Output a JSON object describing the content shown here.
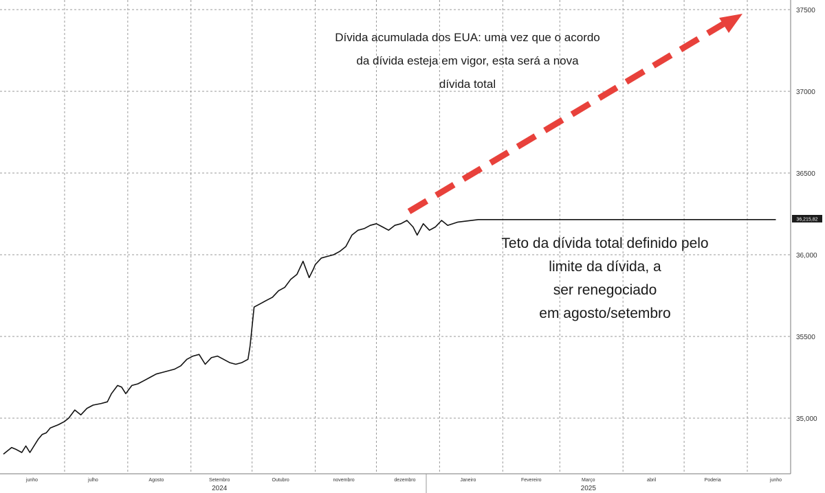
{
  "chart_data": {
    "type": "line",
    "title": "",
    "xlabel": "",
    "ylabel": "",
    "ylim": [
      34760,
      37560
    ],
    "y_ticks": [
      {
        "value": 35000,
        "label": "35,000"
      },
      {
        "value": 35500,
        "label": "35500"
      },
      {
        "value": 36000,
        "label": "36,000"
      },
      {
        "value": 36500,
        "label": "36500"
      },
      {
        "value": 37000,
        "label": "37000"
      },
      {
        "value": 37500,
        "label": "37500"
      }
    ],
    "x_ticks": [
      {
        "date": "2024-06-15",
        "label": "junho"
      },
      {
        "date": "2024-07-15",
        "label": "julho"
      },
      {
        "date": "2024-08-15",
        "label": "Agosto"
      },
      {
        "date": "2024-09-15",
        "label": "Setembro"
      },
      {
        "date": "2024-10-15",
        "label": "Outubro"
      },
      {
        "date": "2024-11-15",
        "label": "novembro"
      },
      {
        "date": "2024-12-15",
        "label": "dezembro"
      },
      {
        "date": "2025-01-15",
        "label": "Janeiro"
      },
      {
        "date": "2025-02-15",
        "label": "Fevereiro"
      },
      {
        "date": "2025-03-15",
        "label": "Março"
      },
      {
        "date": "2025-04-15",
        "label": "abril"
      },
      {
        "date": "2025-05-15",
        "label": "Poderia"
      },
      {
        "date": "2025-06-15",
        "label": "junho"
      }
    ],
    "years": [
      {
        "date": "2024-09-15",
        "label": "2024"
      },
      {
        "date": "2025-03-15",
        "label": "2025"
      }
    ],
    "grid": true,
    "series": [
      {
        "color": "#111111",
        "x": [
          "2024-06-01",
          "2024-06-05",
          "2024-06-07",
          "2024-06-10",
          "2024-06-12",
          "2024-06-14",
          "2024-06-18",
          "2024-06-20",
          "2024-06-22",
          "2024-06-24",
          "2024-06-26",
          "2024-06-28",
          "2024-07-01",
          "2024-07-03",
          "2024-07-06",
          "2024-07-09",
          "2024-07-12",
          "2024-07-15",
          "2024-07-19",
          "2024-07-22",
          "2024-07-24",
          "2024-07-27",
          "2024-07-29",
          "2024-07-31",
          "2024-08-03",
          "2024-08-06",
          "2024-08-09",
          "2024-08-12",
          "2024-08-15",
          "2024-08-18",
          "2024-08-21",
          "2024-08-24",
          "2024-08-27",
          "2024-08-30",
          "2024-09-02",
          "2024-09-05",
          "2024-09-08",
          "2024-09-11",
          "2024-09-14",
          "2024-09-17",
          "2024-09-20",
          "2024-09-23",
          "2024-09-26",
          "2024-09-29",
          "2024-09-30",
          "2024-10-02",
          "2024-10-05",
          "2024-10-08",
          "2024-10-11",
          "2024-10-14",
          "2024-10-17",
          "2024-10-20",
          "2024-10-23",
          "2024-10-26",
          "2024-10-29",
          "2024-10-31",
          "2024-11-01",
          "2024-11-04",
          "2024-11-07",
          "2024-11-10",
          "2024-11-13",
          "2024-11-16",
          "2024-11-19",
          "2024-11-22",
          "2024-11-25",
          "2024-11-28",
          "2024-12-01",
          "2024-12-04",
          "2024-12-07",
          "2024-12-10",
          "2024-12-13",
          "2024-12-16",
          "2024-12-19",
          "2024-12-21",
          "2024-12-24",
          "2024-12-27",
          "2024-12-30",
          "2025-01-02",
          "2025-01-05",
          "2025-01-10",
          "2025-01-20",
          "2025-02-01",
          "2025-02-15",
          "2025-03-01",
          "2025-03-15",
          "2025-04-01",
          "2025-04-15",
          "2025-05-01",
          "2025-05-15",
          "2025-06-01",
          "2025-06-15"
        ],
        "y": [
          34780,
          34820,
          34810,
          34790,
          34830,
          34790,
          34870,
          34900,
          34910,
          34940,
          34950,
          34960,
          34980,
          35000,
          35050,
          35020,
          35060,
          35080,
          35090,
          35100,
          35150,
          35200,
          35190,
          35150,
          35200,
          35210,
          35230,
          35250,
          35270,
          35280,
          35290,
          35300,
          35320,
          35360,
          35380,
          35390,
          35330,
          35370,
          35380,
          35360,
          35340,
          35330,
          35340,
          35360,
          35440,
          35680,
          35700,
          35720,
          35740,
          35780,
          35800,
          35850,
          35880,
          35960,
          35860,
          35910,
          35940,
          35980,
          35990,
          36000,
          36020,
          36050,
          36120,
          36150,
          36160,
          36180,
          36190,
          36170,
          36150,
          36180,
          36190,
          36210,
          36170,
          36120,
          36190,
          36150,
          36170,
          36210,
          36180,
          36200,
          36215,
          36215,
          36215,
          36215,
          36215,
          36215,
          36215,
          36215,
          36215,
          36215,
          36215
        ]
      }
    ],
    "last_value_label": "36,215,82",
    "arrow_color": "#e8413b",
    "annotations": {
      "top": [
        "Dívida acumulada dos EUA: uma vez que o acordo",
        "da dívida esteja em vigor, esta será a nova",
        "dívida total"
      ],
      "middle": [
        "Teto da dívida total definido pelo",
        "limite da dívida, a",
        "ser renegociado",
        "em agosto/setembro"
      ]
    }
  }
}
